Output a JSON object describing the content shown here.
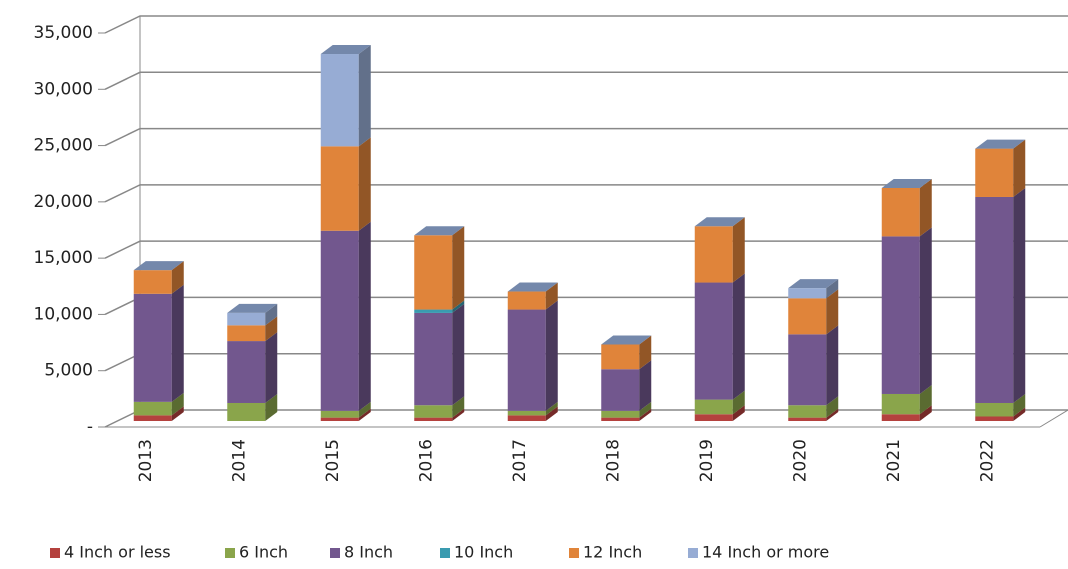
{
  "chart_data": {
    "type": "bar3d-stacked",
    "categories": [
      "2013",
      "2014",
      "2015",
      "2016",
      "2017",
      "2018",
      "2019",
      "2020",
      "2021",
      "2022"
    ],
    "series": [
      {
        "name": "4 Inch or less",
        "color": "#b4413e",
        "values": [
          500,
          0,
          300,
          300,
          500,
          300,
          600,
          300,
          600,
          400
        ]
      },
      {
        "name": "6 Inch",
        "color": "#8aa54b",
        "values": [
          1200,
          1600,
          600,
          1100,
          400,
          600,
          1300,
          1100,
          1800,
          1200
        ]
      },
      {
        "name": "8 Inch",
        "color": "#72578e",
        "values": [
          9600,
          5500,
          16000,
          8200,
          9000,
          3700,
          10400,
          6300,
          14000,
          18300
        ]
      },
      {
        "name": "10 Inch",
        "color": "#3a9bb0",
        "values": [
          0,
          0,
          0,
          300,
          0,
          0,
          0,
          0,
          0,
          0
        ]
      },
      {
        "name": "12 Inch",
        "color": "#e0843a",
        "values": [
          2100,
          1400,
          7500,
          6600,
          1600,
          2200,
          5000,
          3200,
          4300,
          4300
        ]
      },
      {
        "name": "14 Inch or more",
        "color": "#97acd4",
        "values": [
          0,
          1100,
          8200,
          0,
          0,
          0,
          0,
          900,
          0,
          0
        ]
      }
    ],
    "ylim": [
      0,
      35000
    ],
    "yticks": [
      {
        "value": 0,
        "label": "-"
      },
      {
        "value": 5000,
        "label": "5,000"
      },
      {
        "value": 10000,
        "label": "10,000"
      },
      {
        "value": 15000,
        "label": "15,000"
      },
      {
        "value": 20000,
        "label": "20,000"
      },
      {
        "value": 25000,
        "label": "25,000"
      },
      {
        "value": 30000,
        "label": "30,000"
      },
      {
        "value": 35000,
        "label": "35,000"
      }
    ],
    "grid": true,
    "legend": "bottom"
  }
}
